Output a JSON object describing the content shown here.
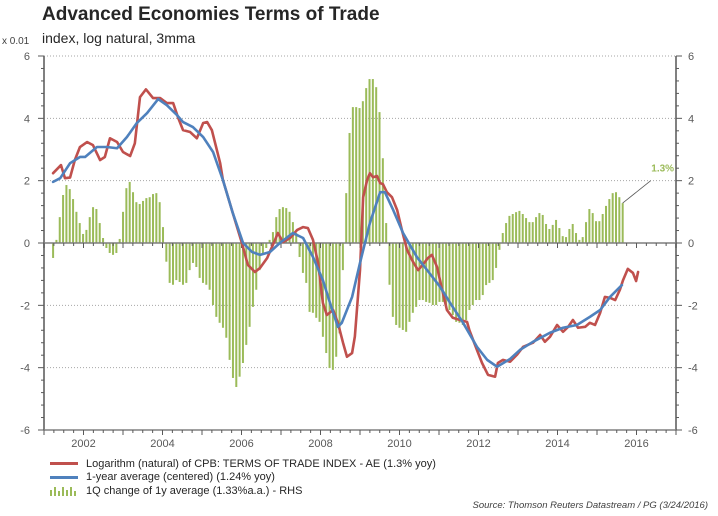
{
  "header": {
    "title": "Advanced Economies Terms of Trade",
    "subtitle": "index, log natural, 3mma",
    "unit_label": "x 0.01"
  },
  "legend": {
    "items": [
      {
        "label": "Logarithm (natural) of CPB: TERMS OF TRADE INDEX - AE (1.3% yoy)",
        "icon": "line-swatch",
        "color": "#c0504d"
      },
      {
        "label": "1-year average (centered)  (1.24% yoy)",
        "icon": "line-swatch",
        "color": "#4f81bd"
      },
      {
        "label": "1Q change of 1y average  (1.33%a.a.) - RHS",
        "icon": "bar-swatch",
        "color": "#9bbb59"
      }
    ]
  },
  "footer": {
    "source": "Source: Thomson Reuters Datastream / PG (3/24/2016)"
  },
  "chart_data": {
    "type": "line",
    "title": "Advanced Economies Terms of Trade",
    "subtitle": "index, log natural, 3mma",
    "xlabel": "",
    "ylabel": "x 0.01",
    "ylabel_right": "",
    "x_range": [
      2001,
      2017
    ],
    "y_range": [
      -6,
      6
    ],
    "y2_range": [
      -6,
      6
    ],
    "x_tick_labels": [
      "2002",
      "2004",
      "2006",
      "2008",
      "2010",
      "2012",
      "2014",
      "2016"
    ],
    "x_tick_values": [
      2002,
      2004,
      2006,
      2008,
      2010,
      2012,
      2014,
      2016
    ],
    "y_tick_labels": [
      "-6",
      "-4",
      "-2",
      "0",
      "2",
      "4",
      "6"
    ],
    "y_tick_values": [
      -6,
      -4,
      -2,
      0,
      2,
      4,
      6
    ],
    "y2_tick_labels": [
      "-6",
      "-4",
      "-2",
      "0",
      "2",
      "4",
      "6"
    ],
    "grid": "horizontal dotted",
    "legend_position": "bottom-left",
    "annotation": {
      "text": "1.3%",
      "target_series": "1Q change of 1y average",
      "color": "#9bbb59"
    },
    "series": [
      {
        "name": "Logarithm (natural) of CPB: TERMS OF TRADE INDEX - AE (1.3% yoy)",
        "type": "line",
        "axis": "left",
        "color": "#c0504d",
        "points": [
          [
            2001.23,
            2.24
          ],
          [
            2001.43,
            2.5
          ],
          [
            2001.53,
            2.08
          ],
          [
            2001.66,
            2.1
          ],
          [
            2001.78,
            2.66
          ],
          [
            2001.91,
            3.08
          ],
          [
            2002.09,
            3.24
          ],
          [
            2002.24,
            3.14
          ],
          [
            2002.42,
            2.66
          ],
          [
            2002.54,
            2.76
          ],
          [
            2002.67,
            3.36
          ],
          [
            2002.85,
            3.24
          ],
          [
            2003.0,
            2.92
          ],
          [
            2003.18,
            2.79
          ],
          [
            2003.3,
            3.2
          ],
          [
            2003.43,
            4.68
          ],
          [
            2003.58,
            4.93
          ],
          [
            2003.76,
            4.65
          ],
          [
            2003.94,
            4.65
          ],
          [
            2004.11,
            4.49
          ],
          [
            2004.27,
            4.49
          ],
          [
            2004.39,
            4.04
          ],
          [
            2004.52,
            3.62
          ],
          [
            2004.7,
            3.56
          ],
          [
            2004.87,
            3.36
          ],
          [
            2005.03,
            3.85
          ],
          [
            2005.13,
            3.88
          ],
          [
            2005.25,
            3.62
          ],
          [
            2005.46,
            2.56
          ],
          [
            2005.53,
            2.02
          ],
          [
            2005.78,
            0.96
          ],
          [
            2006.01,
            0.0
          ],
          [
            2006.16,
            -0.7
          ],
          [
            2006.34,
            -0.93
          ],
          [
            2006.47,
            -0.8
          ],
          [
            2006.65,
            -0.48
          ],
          [
            2006.85,
            0.1
          ],
          [
            2006.92,
            0.32
          ],
          [
            2007.05,
            0.03
          ],
          [
            2007.23,
            0.16
          ],
          [
            2007.41,
            0.42
          ],
          [
            2007.56,
            0.51
          ],
          [
            2007.68,
            0.48
          ],
          [
            2007.81,
            0.1
          ],
          [
            2007.94,
            -0.64
          ],
          [
            2008.06,
            -1.92
          ],
          [
            2008.16,
            -2.31
          ],
          [
            2008.32,
            -2.15
          ],
          [
            2008.44,
            -2.56
          ],
          [
            2008.57,
            -3.2
          ],
          [
            2008.67,
            -3.65
          ],
          [
            2008.8,
            -3.53
          ],
          [
            2008.87,
            -3.0
          ],
          [
            2009.0,
            -0.87
          ],
          [
            2009.08,
            1.47
          ],
          [
            2009.18,
            2.02
          ],
          [
            2009.25,
            2.24
          ],
          [
            2009.33,
            2.11
          ],
          [
            2009.43,
            2.15
          ],
          [
            2009.51,
            1.92
          ],
          [
            2009.58,
            1.89
          ],
          [
            2009.68,
            1.63
          ],
          [
            2009.81,
            1.47
          ],
          [
            2009.94,
            1.06
          ],
          [
            2010.06,
            0.42
          ],
          [
            2010.19,
            -0.22
          ],
          [
            2010.34,
            -0.6
          ],
          [
            2010.47,
            -0.87
          ],
          [
            2010.59,
            -0.7
          ],
          [
            2010.72,
            -0.48
          ],
          [
            2010.82,
            -0.38
          ],
          [
            2010.95,
            -0.77
          ],
          [
            2011.08,
            -1.5
          ],
          [
            2011.2,
            -2.15
          ],
          [
            2011.35,
            -2.4
          ],
          [
            2011.53,
            -2.47
          ],
          [
            2011.71,
            -2.53
          ],
          [
            2011.77,
            -2.8
          ],
          [
            2011.96,
            -3.43
          ],
          [
            2012.09,
            -3.85
          ],
          [
            2012.24,
            -4.23
          ],
          [
            2012.42,
            -4.29
          ],
          [
            2012.49,
            -3.85
          ],
          [
            2012.62,
            -3.75
          ],
          [
            2012.8,
            -3.81
          ],
          [
            2012.97,
            -3.59
          ],
          [
            2013.13,
            -3.33
          ],
          [
            2013.38,
            -3.2
          ],
          [
            2013.56,
            -2.95
          ],
          [
            2013.68,
            -3.17
          ],
          [
            2013.81,
            -3.01
          ],
          [
            2013.99,
            -2.63
          ],
          [
            2014.14,
            -2.85
          ],
          [
            2014.27,
            -2.69
          ],
          [
            2014.39,
            -2.47
          ],
          [
            2014.52,
            -2.72
          ],
          [
            2014.7,
            -2.69
          ],
          [
            2014.82,
            -2.56
          ],
          [
            2014.95,
            -2.63
          ],
          [
            2015.08,
            -2.24
          ],
          [
            2015.2,
            -1.73
          ],
          [
            2015.33,
            -1.76
          ],
          [
            2015.46,
            -1.83
          ],
          [
            2015.58,
            -1.5
          ],
          [
            2015.66,
            -1.19
          ],
          [
            2015.78,
            -0.83
          ],
          [
            2015.91,
            -0.96
          ],
          [
            2015.99,
            -1.22
          ],
          [
            2016.04,
            -0.93
          ]
        ]
      },
      {
        "name": "1-year average (centered)  (1.24% yoy)",
        "type": "line",
        "axis": "left",
        "color": "#4f81bd",
        "points": [
          [
            2001.23,
            1.96
          ],
          [
            2001.41,
            2.08
          ],
          [
            2001.66,
            2.56
          ],
          [
            2001.91,
            2.76
          ],
          [
            2002.04,
            2.76
          ],
          [
            2002.34,
            3.08
          ],
          [
            2002.59,
            3.08
          ],
          [
            2002.85,
            3.04
          ],
          [
            2003.1,
            3.4
          ],
          [
            2003.35,
            3.85
          ],
          [
            2003.61,
            4.17
          ],
          [
            2003.89,
            4.62
          ],
          [
            2004.11,
            4.42
          ],
          [
            2004.37,
            4.1
          ],
          [
            2004.52,
            3.88
          ],
          [
            2004.77,
            3.72
          ],
          [
            2005.03,
            3.4
          ],
          [
            2005.28,
            2.92
          ],
          [
            2005.53,
            2.02
          ],
          [
            2005.78,
            0.96
          ],
          [
            2006.04,
            0.0
          ],
          [
            2006.27,
            -0.29
          ],
          [
            2006.47,
            -0.38
          ],
          [
            2006.72,
            -0.29
          ],
          [
            2006.97,
            0.0
          ],
          [
            2007.3,
            0.32
          ],
          [
            2007.56,
            0.16
          ],
          [
            2007.81,
            -0.45
          ],
          [
            2008.06,
            -1.19
          ],
          [
            2008.24,
            -1.92
          ],
          [
            2008.44,
            -2.69
          ],
          [
            2008.54,
            -2.56
          ],
          [
            2008.8,
            -1.73
          ],
          [
            2009.0,
            -0.64
          ],
          [
            2009.25,
            0.64
          ],
          [
            2009.51,
            1.63
          ],
          [
            2009.63,
            1.63
          ],
          [
            2009.84,
            1.06
          ],
          [
            2010.09,
            0.32
          ],
          [
            2010.44,
            -0.45
          ],
          [
            2010.7,
            -0.87
          ],
          [
            2011.03,
            -1.41
          ],
          [
            2011.28,
            -1.92
          ],
          [
            2011.61,
            -2.56
          ],
          [
            2011.96,
            -3.33
          ],
          [
            2012.22,
            -3.75
          ],
          [
            2012.47,
            -3.97
          ],
          [
            2012.8,
            -3.72
          ],
          [
            2013.05,
            -3.43
          ],
          [
            2013.38,
            -3.17
          ],
          [
            2013.81,
            -2.88
          ],
          [
            2014.14,
            -2.72
          ],
          [
            2014.49,
            -2.63
          ],
          [
            2014.82,
            -2.37
          ],
          [
            2015.08,
            -2.15
          ],
          [
            2015.33,
            -1.73
          ],
          [
            2015.63,
            -1.35
          ]
        ]
      },
      {
        "name": "1Q change of 1y average  (1.33%a.a.) - RHS",
        "type": "bar",
        "axis": "right",
        "color": "#9bbb59",
        "frequency": "monthly",
        "first_date": 2001.23,
        "last_date": 2015.65,
        "values": [
          -0.48,
          0.1,
          0.83,
          1.54,
          1.86,
          1.73,
          1.41,
          1.0,
          0.64,
          0.29,
          0.42,
          0.83,
          1.15,
          1.09,
          0.64,
          0.16,
          -0.16,
          -0.32,
          -0.38,
          -0.32,
          0.13,
          1.0,
          1.76,
          1.96,
          1.63,
          1.31,
          1.25,
          1.35,
          1.44,
          1.47,
          1.57,
          1.6,
          1.31,
          0.51,
          -0.6,
          -1.28,
          -1.34,
          -1.19,
          -1.25,
          -1.34,
          -1.28,
          -0.87,
          -0.64,
          -0.77,
          -1.12,
          -1.28,
          -1.34,
          -1.5,
          -1.99,
          -2.37,
          -2.56,
          -2.72,
          -3.04,
          -3.75,
          -4.33,
          -4.62,
          -4.29,
          -3.85,
          -3.27,
          -2.69,
          -2.05,
          -1.5,
          -0.87,
          -0.38,
          -0.16,
          0.1,
          0.35,
          0.83,
          1.09,
          1.15,
          1.12,
          1.0,
          0.67,
          0.32,
          -0.45,
          -0.96,
          -1.28,
          -2.21,
          -2.24,
          -2.4,
          -2.53,
          -3.01,
          -3.53,
          -4.01,
          -4.07,
          -3.65,
          -2.9,
          -0.87,
          1.6,
          3.53,
          4.36,
          4.36,
          4.33,
          4.55,
          4.97,
          5.26,
          5.26,
          5.0,
          4.2,
          2.72,
          0.64,
          -1.34,
          -2.37,
          -2.63,
          -2.72,
          -2.79,
          -2.85,
          -2.53,
          -2.24,
          -2.05,
          -1.83,
          -1.83,
          -1.89,
          -1.92,
          -1.99,
          -1.99,
          -1.89,
          -1.89,
          -2.05,
          -2.15,
          -2.31,
          -2.53,
          -2.56,
          -2.63,
          -2.47,
          -2.15,
          -1.99,
          -1.83,
          -1.83,
          -1.67,
          -1.35,
          -1.28,
          -1.19,
          -0.8,
          -0.22,
          0.32,
          0.64,
          0.87,
          0.93,
          0.99,
          1.03,
          0.93,
          0.8,
          0.67,
          0.67,
          0.83,
          0.96,
          0.9,
          0.61,
          0.45,
          0.58,
          0.74,
          0.48,
          0.22,
          0.19,
          0.45,
          0.61,
          0.32,
          0.1,
          0.19,
          0.67,
          1.09,
          0.96,
          0.7,
          0.7,
          0.93,
          1.19,
          1.41,
          1.6,
          1.63,
          1.47,
          1.28
        ]
      }
    ]
  }
}
